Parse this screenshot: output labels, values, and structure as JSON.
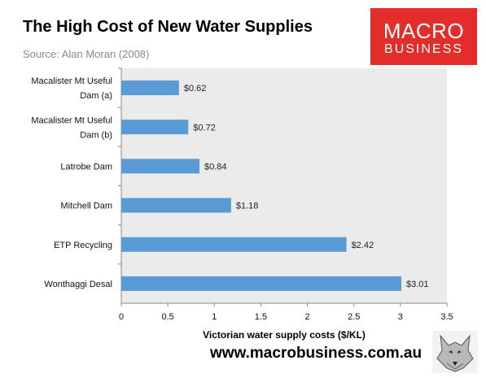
{
  "header": {
    "title": "The High Cost of New Water Supplies",
    "subtitle": "Source: Alan Moran (2008)"
  },
  "logo": {
    "line1": "MACRO",
    "line2": "BUSINESS"
  },
  "footer": {
    "url": "www.macrobusiness.com.au"
  },
  "colors": {
    "bar": "#5b9bd5",
    "plot_bg": "#ebebeb",
    "logo_bg": "#e32d2a"
  },
  "chart_data": {
    "type": "bar",
    "orientation": "horizontal",
    "categories": [
      [
        "Macalister Mt Useful",
        "Dam (a)"
      ],
      [
        "Macalister Mt Useful",
        "Dam (b)"
      ],
      [
        "Latrobe Dam"
      ],
      [
        "Mitchell Dam"
      ],
      [
        "ETP Recycling"
      ],
      [
        "Wonthaggi Desal"
      ]
    ],
    "values": [
      0.62,
      0.72,
      0.84,
      1.18,
      2.42,
      3.01
    ],
    "data_labels": [
      "$0.62",
      "$0.72",
      "$0.84",
      "$1.18",
      "$2.42",
      "$3.01"
    ],
    "xlabel": "Victorian water supply costs ($/KL)",
    "xlim": [
      0,
      3.5
    ],
    "xticks": [
      0,
      0.5,
      1,
      1.5,
      2,
      2.5,
      3,
      3.5
    ],
    "xtick_labels": [
      "0",
      "0.5",
      "1",
      "1.5",
      "2",
      "2.5",
      "3",
      "3.5"
    ],
    "grid": false,
    "legend": "none"
  }
}
